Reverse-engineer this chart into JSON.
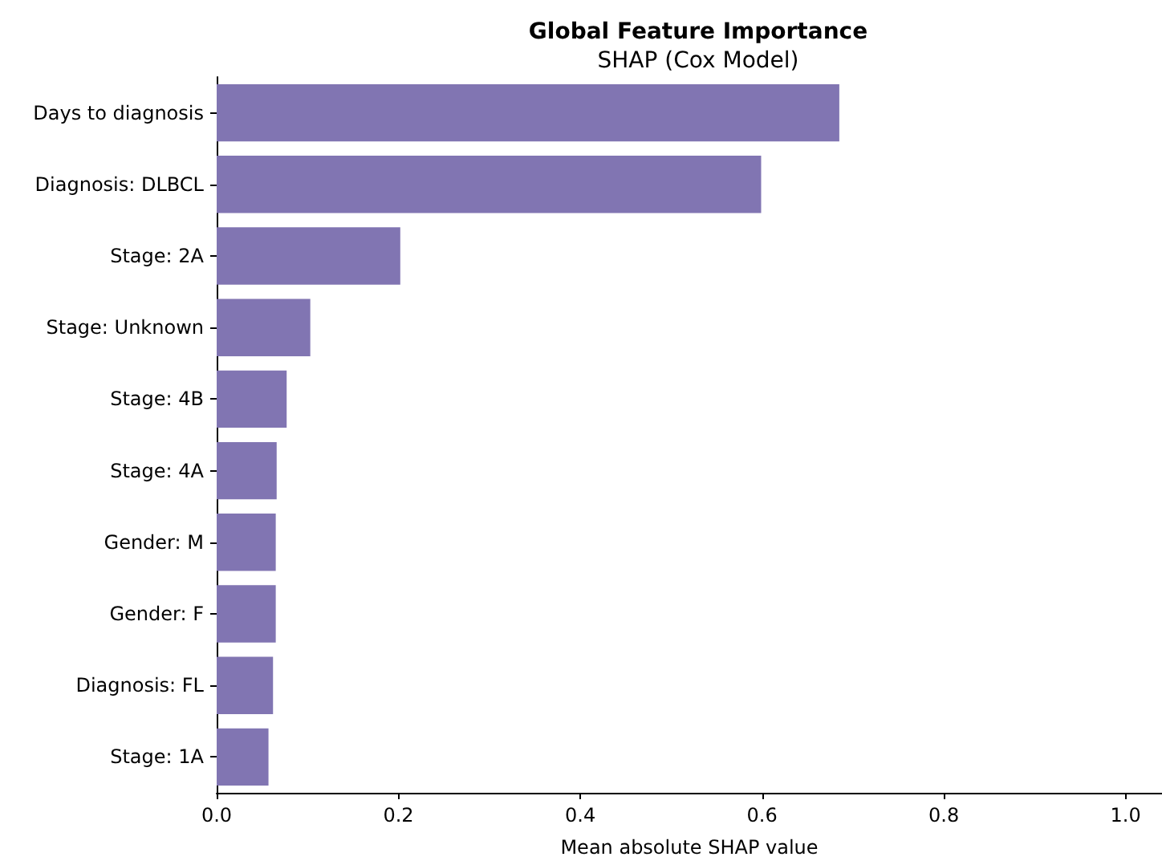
{
  "chart_data": {
    "type": "bar",
    "orientation": "horizontal",
    "title": "Global Feature Importance",
    "subtitle": "SHAP (Cox Model)",
    "xlabel": "Mean absolute SHAP value",
    "categories": [
      "Days to diagnosis",
      "Diagnosis: DLBCL",
      "Stage: 2A",
      "Stage: Unknown",
      "Stage: 4B",
      "Stage: 4A",
      "Gender: M",
      "Gender: F",
      "Diagnosis: FL",
      "Stage: 1A"
    ],
    "values": [
      0.685,
      0.599,
      0.202,
      0.103,
      0.077,
      0.066,
      0.065,
      0.065,
      0.062,
      0.057
    ],
    "color": "#8175b2",
    "xlim": [
      0,
      1.04
    ],
    "xticks": [
      {
        "value": 0,
        "label": "0.0"
      },
      {
        "value": 0.2,
        "label": "0.2"
      },
      {
        "value": 0.4,
        "label": "0.4"
      },
      {
        "value": 0.6,
        "label": "0.6"
      },
      {
        "value": 0.8,
        "label": "0.8"
      },
      {
        "value": 1,
        "label": "1.0"
      }
    ],
    "grid": false
  }
}
